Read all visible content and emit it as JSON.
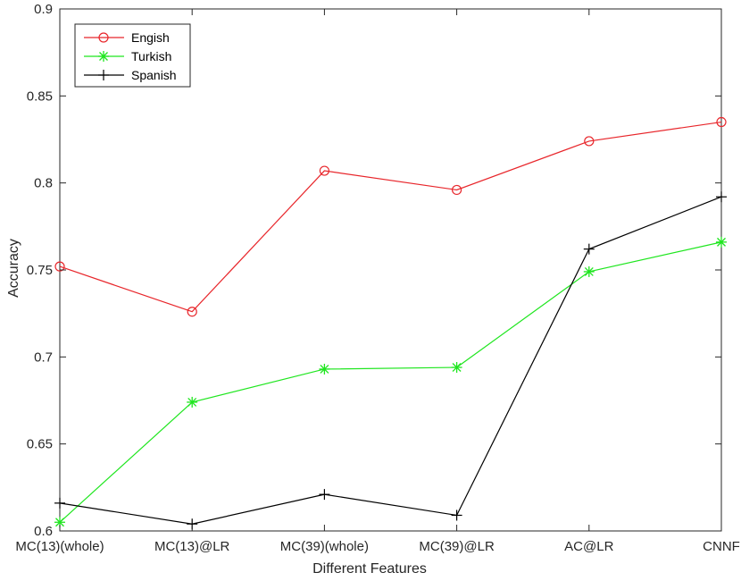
{
  "chart_data": {
    "type": "line",
    "categories": [
      "MC(13)(whole)",
      "MC(13)@LR",
      "MC(39)(whole)",
      "MC(39)@LR",
      "AC@LR",
      "CNNF"
    ],
    "series": [
      {
        "name": "Engish",
        "color": "#e8262b",
        "marker": "circle",
        "values": [
          0.752,
          0.726,
          0.807,
          0.796,
          0.824,
          0.835
        ]
      },
      {
        "name": "Turkish",
        "color": "#1fe61f",
        "marker": "asterisk",
        "values": [
          0.605,
          0.674,
          0.693,
          0.694,
          0.749,
          0.766
        ]
      },
      {
        "name": "Spanish",
        "color": "#000000",
        "marker": "plus",
        "values": [
          0.616,
          0.604,
          0.621,
          0.609,
          0.762,
          0.792
        ]
      }
    ],
    "xlabel": "Different Features",
    "ylabel": "Accuracy",
    "ylim": [
      0.6,
      0.9
    ],
    "yticks": [
      "0.6",
      "0.65",
      "0.7",
      "0.75",
      "0.8",
      "0.85",
      "0.9"
    ],
    "grid": false,
    "legend_position": "top-left"
  }
}
